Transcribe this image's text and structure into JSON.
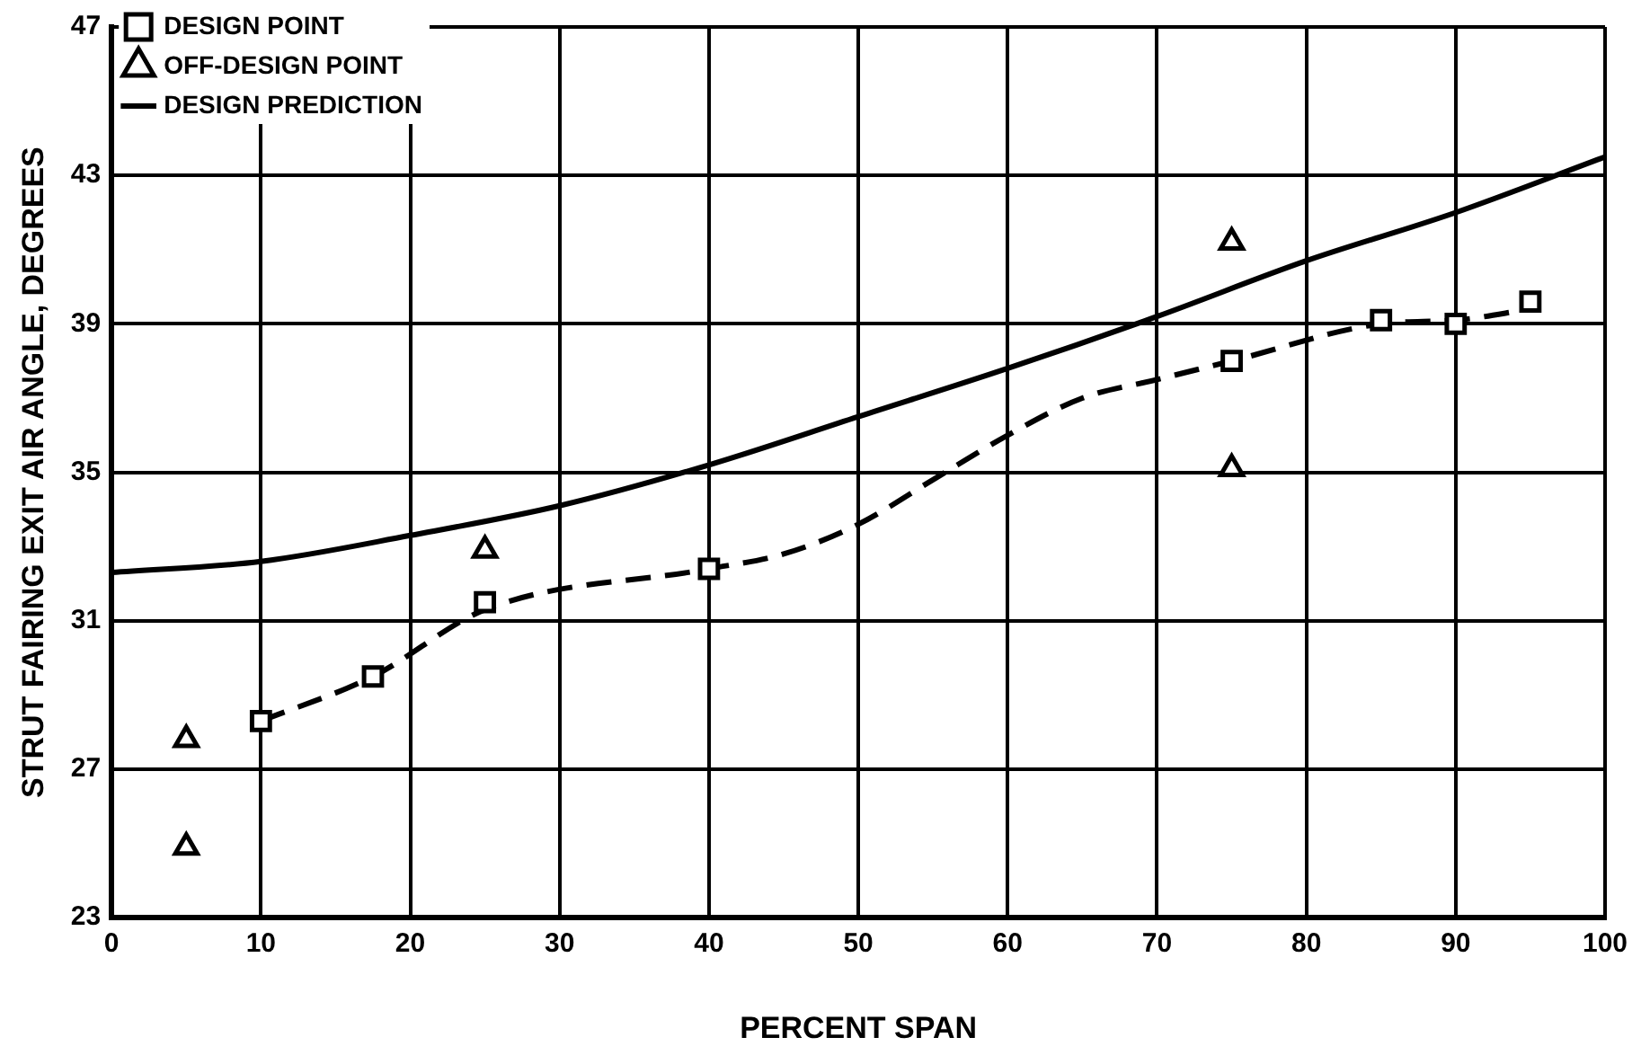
{
  "chart_data": {
    "type": "scatter",
    "xlabel": "PERCENT SPAN",
    "ylabel": "STRUT FAIRING EXIT AIR ANGLE, DEGREES",
    "xlim": [
      0,
      100
    ],
    "xticks": [
      0,
      10,
      20,
      30,
      40,
      50,
      60,
      70,
      80,
      90,
      100
    ],
    "ylim": [
      23,
      47
    ],
    "yticks": [
      23,
      27,
      31,
      35,
      39,
      43,
      47
    ],
    "grid": true,
    "legend": "top left",
    "series": [
      {
        "name": "DESIGN POINT",
        "type": "scatter",
        "marker": "square",
        "color": "#000000",
        "x": [
          10,
          17.5,
          25,
          40,
          75,
          85,
          90,
          95
        ],
        "values": [
          28.3,
          29.5,
          31.5,
          32.4,
          38.0,
          39.1,
          39.0,
          39.6
        ]
      },
      {
        "name": "OFF-DESIGN POINT",
        "type": "scatter",
        "marker": "triangle",
        "color": "#000000",
        "x": [
          5,
          5,
          25,
          75,
          75
        ],
        "values": [
          27.8,
          24.9,
          32.9,
          41.2,
          35.1
        ]
      },
      {
        "name": "DESIGN PREDICTION",
        "type": "line",
        "marker": "none",
        "line_style": "solid",
        "color": "#000000",
        "x": [
          0,
          10,
          20,
          30,
          40,
          50,
          60,
          70,
          80,
          90,
          100
        ],
        "values": [
          32.3,
          32.6,
          33.3,
          34.1,
          35.2,
          36.5,
          37.8,
          39.2,
          40.7,
          42.0,
          43.5
        ]
      },
      {
        "type": "line",
        "marker": "none",
        "line_style": "dashed",
        "color": "#000000",
        "x": [
          10,
          17.5,
          25,
          40,
          45,
          50,
          55,
          60,
          65,
          70,
          75,
          85,
          90,
          95
        ],
        "values": [
          28.3,
          29.5,
          31.3,
          32.4,
          32.8,
          33.6,
          34.8,
          36.0,
          37.0,
          37.5,
          38.0,
          39.0,
          39.1,
          39.4
        ]
      }
    ]
  }
}
